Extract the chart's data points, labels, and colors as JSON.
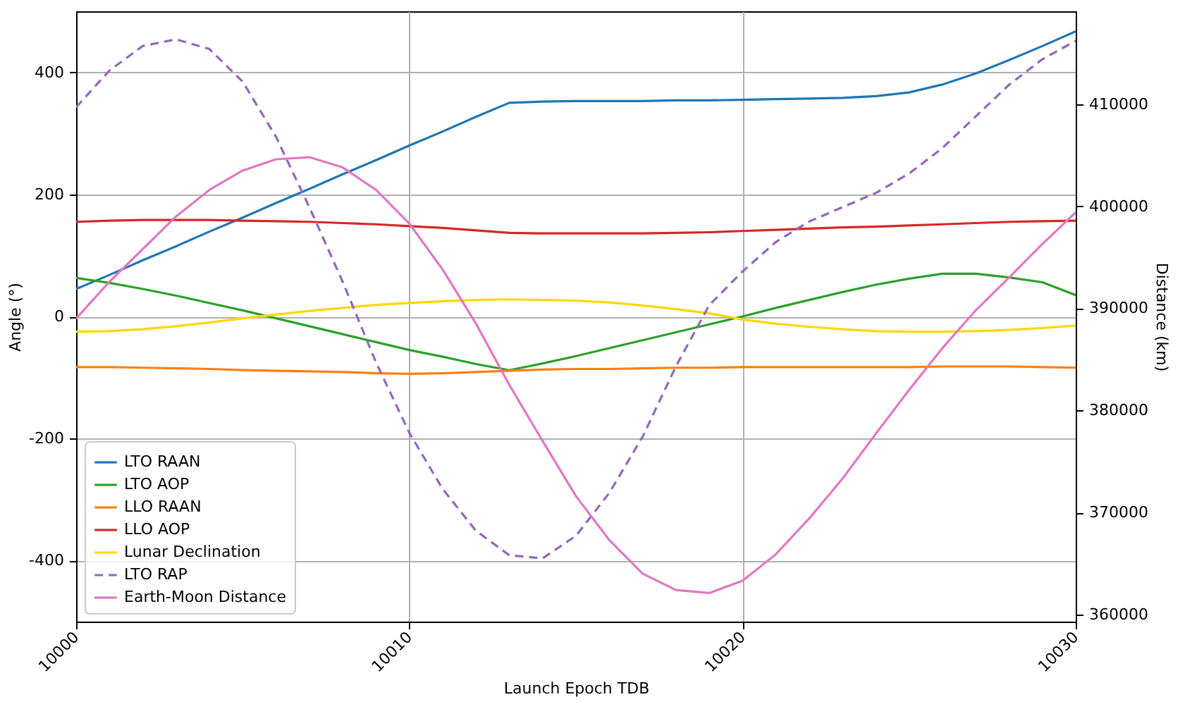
{
  "chart_data": {
    "type": "line",
    "xlabel": "Launch Epoch TDB",
    "ylabel": "Angle (°)",
    "y2label": "Distance (km)",
    "x": [
      10000,
      10001,
      10002,
      10003,
      10004,
      10005,
      10006,
      10007,
      10008,
      10009,
      10010,
      10011,
      10012,
      10013,
      10014,
      10015,
      10016,
      10017,
      10018,
      10019,
      10020,
      10021,
      10022,
      10023,
      10024,
      10025,
      10026,
      10027,
      10028,
      10029,
      10030
    ],
    "xlim": [
      10000,
      10030
    ],
    "xticks": [
      10000,
      10010,
      10020,
      10030
    ],
    "ylim": [
      -500,
      500
    ],
    "yticks": [
      -400,
      -200,
      0,
      200,
      400
    ],
    "y2lim": [
      359300,
      419100
    ],
    "y2ticks": [
      360000,
      370000,
      380000,
      390000,
      400000,
      410000
    ],
    "grid": true,
    "legend": "bottom left",
    "series": [
      {
        "name": "LTO RAAN",
        "color": "#1f77b4",
        "values": [
          45,
          68,
          92,
          115,
          139,
          162,
          186,
          209,
          233,
          256,
          280,
          303,
          327,
          350,
          352,
          353,
          353,
          353,
          354,
          354,
          355,
          356,
          357,
          358,
          361,
          367,
          380,
          398,
          420,
          443,
          467
        ]
      },
      {
        "name": "LTO AOP",
        "color": "#2ca02c",
        "values": [
          63,
          55,
          45,
          34,
          22,
          10,
          -3,
          -16,
          -29,
          -42,
          -55,
          -66,
          -78,
          -88,
          -77,
          -65,
          -52,
          -39,
          -26,
          -13,
          0,
          14,
          27,
          40,
          52,
          62,
          70,
          70,
          64,
          56,
          35
        ]
      },
      {
        "name": "LLO RAAN",
        "color": "#ff7f0e",
        "values": [
          -83,
          -83,
          -84,
          -85,
          -86,
          -88,
          -89,
          -90,
          -91,
          -93,
          -94,
          -93,
          -91,
          -89,
          -87,
          -86,
          -86,
          -85,
          -84,
          -84,
          -83,
          -83,
          -83,
          -83,
          -83,
          -83,
          -82,
          -82,
          -82,
          -83,
          -84
        ]
      },
      {
        "name": "LLO AOP",
        "color": "#d62728",
        "values": [
          155,
          157,
          158,
          158,
          158,
          157,
          156,
          155,
          153,
          151,
          148,
          145,
          141,
          137,
          136,
          136,
          136,
          136,
          137,
          138,
          140,
          142,
          144,
          146,
          147,
          149,
          151,
          153,
          155,
          156,
          157
        ]
      },
      {
        "name": "Lunar Declination",
        "color": "#ffd700",
        "values": [
          -25,
          -24,
          -21,
          -16,
          -10,
          -3,
          3,
          9,
          14,
          19,
          22,
          25,
          27,
          28,
          27,
          26,
          23,
          18,
          12,
          5,
          -5,
          -12,
          -17,
          -21,
          -24,
          -25,
          -25,
          -24,
          -22,
          -19,
          -15
        ]
      },
      {
        "name": "LTO RAP",
        "color": "#9467bd",
        "axis": "y2",
        "line_style": "dashed",
        "values": [
          409700,
          413300,
          415700,
          416350,
          415400,
          412200,
          406800,
          399900,
          392600,
          384700,
          377800,
          372300,
          368200,
          365800,
          365500,
          367700,
          371900,
          377400,
          384300,
          390300,
          393600,
          396500,
          398500,
          399900,
          401300,
          403200,
          405700,
          408800,
          411900,
          414400,
          416200
        ]
      },
      {
        "name": "Earth-Moon Distance",
        "color": "#e377c2",
        "axis": "y2",
        "values": [
          389000,
          392600,
          395800,
          399000,
          401600,
          403500,
          404600,
          404800,
          403800,
          401600,
          398300,
          393800,
          388500,
          382500,
          377000,
          371600,
          367300,
          364000,
          362400,
          362100,
          363300,
          365900,
          369400,
          373300,
          377700,
          382000,
          386100,
          389800,
          393000,
          396300,
          399400
        ]
      }
    ]
  }
}
